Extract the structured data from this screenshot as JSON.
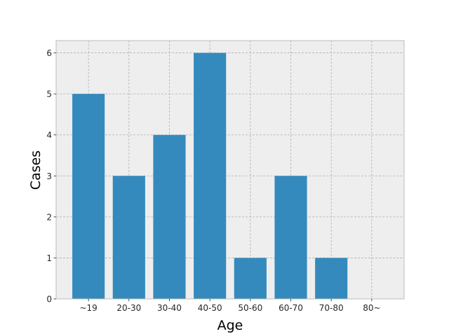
{
  "chart_data": {
    "type": "bar",
    "title": "",
    "xlabel": "Age",
    "ylabel": "Cases",
    "categories": [
      "~19",
      "20-30",
      "30-40",
      "40-50",
      "50-60",
      "60-70",
      "70-80",
      "80~"
    ],
    "values": [
      5,
      3,
      4,
      6,
      1,
      3,
      1,
      0
    ],
    "ylim": [
      0,
      6.3
    ],
    "yticks": [
      0,
      1,
      2,
      3,
      4,
      5,
      6
    ],
    "grid": true,
    "bar_color": "#348ABD",
    "plot_background": "#EEEEEE",
    "frame_color": "#BCBCBC",
    "grid_color": "#B0B0B0"
  }
}
